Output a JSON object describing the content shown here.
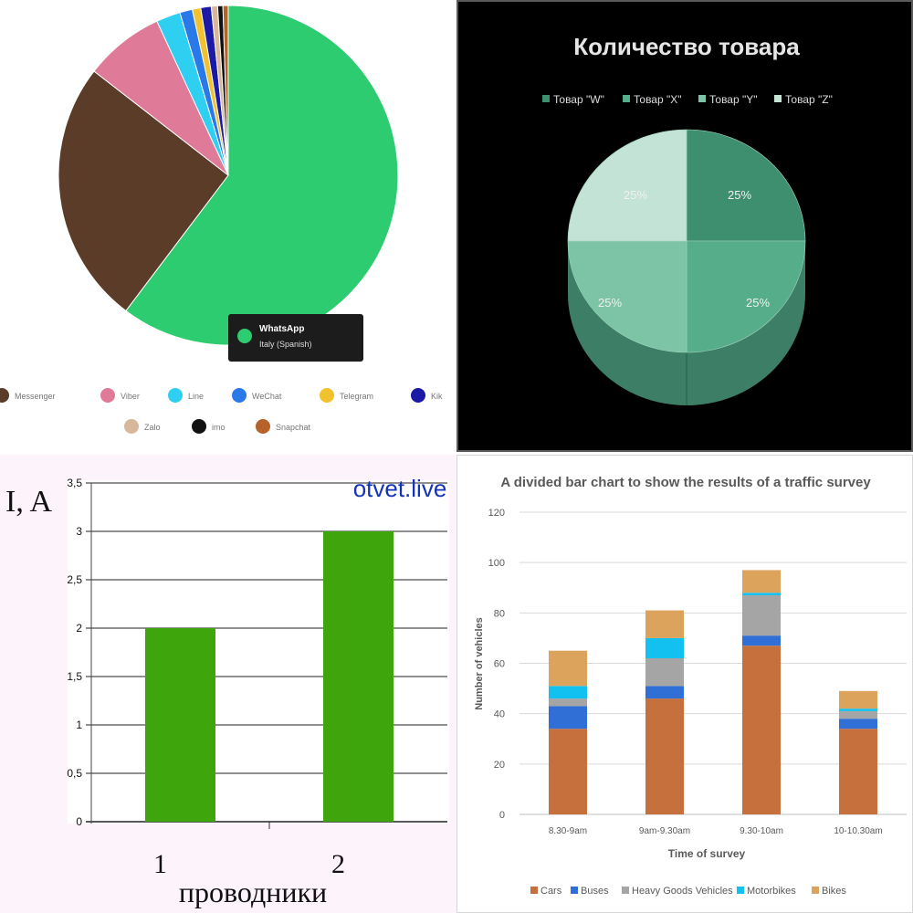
{
  "chart_data": [
    {
      "type": "pie",
      "title": "",
      "tooltip": {
        "label": "WhatsApp",
        "sub": "Italy (Spanish)"
      },
      "slices": [
        {
          "name": "WhatsApp",
          "value": 60.3,
          "color": "#2ecc71"
        },
        {
          "name": "Messenger",
          "value": 25.2,
          "color": "#5a3c28"
        },
        {
          "name": "Viber",
          "value": 7.6,
          "color": "#e07a99"
        },
        {
          "name": "Line",
          "value": 2.3,
          "color": "#2ecff0"
        },
        {
          "name": "WeChat",
          "value": 1.2,
          "color": "#2979e8"
        },
        {
          "name": "Telegram",
          "value": 0.8,
          "color": "#f2c12e"
        },
        {
          "name": "Kik",
          "value": 1.0,
          "color": "#1a1aa6"
        },
        {
          "name": "Zalo",
          "value": 0.6,
          "color": "#d8b89a"
        },
        {
          "name": "imo",
          "value": 0.5,
          "color": "#111111"
        },
        {
          "name": "Snapchat",
          "value": 0.5,
          "color": "#b5622b"
        }
      ],
      "legend": [
        "Messenger",
        "Viber",
        "Line",
        "WeChat",
        "Telegram",
        "Kik",
        "Zalo",
        "imo",
        "Snapchat"
      ]
    },
    {
      "type": "pie",
      "title": "Количество товара",
      "legend": [
        "Товар \"W\"",
        "Товар \"X\"",
        "Товар \"Y\"",
        "Товар \"Z\""
      ],
      "slices": [
        {
          "name": "Товар \"W\"",
          "value": 25,
          "label": "25%",
          "color": "#3e8e70"
        },
        {
          "name": "Товар \"X\"",
          "value": 25,
          "label": "25%",
          "color": "#55ad8a"
        },
        {
          "name": "Товар \"Y\"",
          "value": 25,
          "label": "25%",
          "color": "#7cc4a5"
        },
        {
          "name": "Товар \"Z\"",
          "value": 25,
          "label": "25%",
          "color": "#c2e3d5"
        }
      ]
    },
    {
      "type": "bar",
      "title": "",
      "ylabel": "I, A",
      "xlabel": "проводники",
      "watermark": "otvet.live",
      "categories": [
        "1",
        "2"
      ],
      "values": [
        2,
        3
      ],
      "ylim": [
        0,
        3.5
      ],
      "ytick_labels": [
        "0",
        "0,5",
        "1",
        "1,5",
        "2",
        "2,5",
        "3",
        "3,5"
      ],
      "bar_color": "#3ea60c",
      "grid": true
    },
    {
      "type": "bar",
      "stacked": true,
      "title": "A divided bar chart to show the results of a traffic survey",
      "xlabel": "Time of survey",
      "ylabel": "Number of vehicles",
      "categories": [
        "8.30-9am",
        "9am-9.30am",
        "9.30-10am",
        "10-10.30am"
      ],
      "ylim": [
        0,
        120
      ],
      "yticks": [
        0,
        20,
        40,
        60,
        80,
        100,
        120
      ],
      "grid": true,
      "legend_position": "bottom",
      "series": [
        {
          "name": "Cars",
          "values": [
            34,
            46,
            67,
            34
          ],
          "color": "#c5703d"
        },
        {
          "name": "Buses",
          "values": [
            9,
            5,
            4,
            4
          ],
          "color": "#2f6fd6"
        },
        {
          "name": "Heavy Goods Vehicles",
          "values": [
            3,
            11,
            16,
            3
          ],
          "color": "#a5a5a5"
        },
        {
          "name": "Motorbikes",
          "values": [
            5,
            8,
            1,
            1
          ],
          "color": "#13c1f0"
        },
        {
          "name": "Bikes",
          "values": [
            14,
            11,
            9,
            7
          ],
          "color": "#dba35c"
        }
      ]
    }
  ]
}
